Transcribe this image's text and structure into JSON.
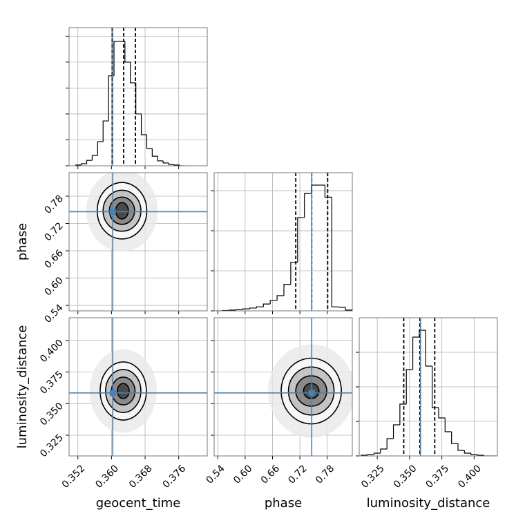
{
  "chart_data": [
    {
      "type": "histogram",
      "color": "#000000",
      "truth_color": "#4682b4",
      "grid": true,
      "bins": [
        0.3515,
        0.3528,
        0.3541,
        0.3554,
        0.3567,
        0.358,
        0.3593,
        0.3606,
        0.3619,
        0.3632,
        0.3645,
        0.3658,
        0.3671,
        0.3684,
        0.3697,
        0.371,
        0.3723,
        0.3736,
        0.3749,
        0.3762,
        0.3775
      ],
      "counts": [
        3,
        8,
        21,
        40,
        93,
        173,
        347,
        480,
        480,
        400,
        320,
        200,
        120,
        67,
        37,
        19,
        11,
        5,
        3,
        0
      ],
      "quantiles": [
        0.3602,
        0.3629,
        0.3657
      ],
      "truth": 0.3603,
      "xlim": [
        0.3499,
        0.3828
      ],
      "xticks": [
        0.352,
        0.36,
        0.368,
        0.376
      ],
      "ylim": [
        0,
        533
      ],
      "yticks": [
        0,
        100,
        200,
        300,
        400,
        500
      ]
    },
    {
      "type": "density",
      "truth_color": "#4682b4",
      "grid": true,
      "center": [
        0.3625,
        0.748
      ],
      "x_radius": [
        0.0085,
        0.0059,
        0.0045,
        0.003,
        0.0015
      ],
      "y_radius": [
        0.09,
        0.062,
        0.045,
        0.03,
        0.018
      ],
      "truth": [
        0.3603,
        0.746
      ],
      "ylabel": "phase",
      "xlim": [
        0.3499,
        0.3828
      ],
      "xticks": [
        0.352,
        0.36,
        0.368,
        0.376
      ],
      "ylim": [
        0.528,
        0.8316
      ],
      "yticks": [
        0.54,
        {
          "value": 0.6,
          "label": "0.60"
        },
        0.66,
        0.72,
        0.78
      ]
    },
    {
      "type": "histogram",
      "color": "#000000",
      "truth_color": "#4682b4",
      "grid": true,
      "bins": [
        0.535,
        0.55,
        0.565,
        0.58,
        0.595,
        0.61,
        0.625,
        0.64,
        0.655,
        0.67,
        0.685,
        0.7,
        0.715,
        0.73,
        0.745,
        0.76,
        0.775,
        0.79,
        0.805,
        0.82,
        0.835
      ],
      "counts": [
        0,
        1,
        2,
        3,
        5,
        7,
        10,
        17,
        26,
        38,
        66,
        121,
        233,
        293,
        314,
        314,
        284,
        10,
        9,
        2
      ],
      "quantiles": [
        0.711,
        0.746,
        0.781
      ],
      "truth": 0.746,
      "xlim": [
        0.532,
        0.835
      ],
      "xticks": [
        0.54,
        0.6,
        0.66,
        0.72,
        0.78
      ],
      "ylim": [
        0,
        345
      ],
      "yticks": [
        0,
        100,
        200,
        300
      ]
    },
    {
      "type": "density",
      "truth_color": "#4682b4",
      "grid": true,
      "center": [
        0.3628,
        0.36
      ],
      "x_radius": [
        0.008,
        0.0055,
        0.0042,
        0.0028,
        0.0014
      ],
      "y_radius": [
        0.033,
        0.023,
        0.017,
        0.011,
        0.006
      ],
      "truth": [
        0.3603,
        0.3585
      ],
      "xlabel": "geocent_time",
      "ylabel": "luminosity_distance",
      "xlim": [
        0.3499,
        0.3828
      ],
      "xticks": [
        0.352,
        {
          "value": 0.36,
          "label": "0.360"
        },
        0.368,
        0.376
      ],
      "ylim": [
        0.3086,
        0.418
      ],
      "yticks": [
        0.325,
        {
          "value": 0.35,
          "label": "0.350"
        },
        0.375,
        {
          "value": 0.4,
          "label": "0.400"
        }
      ]
    },
    {
      "type": "density",
      "truth_color": "#4682b4",
      "grid": true,
      "center": [
        0.745,
        0.36
      ],
      "x_radius": [
        0.095,
        0.066,
        0.05,
        0.034,
        0.017
      ],
      "y_radius": [
        0.037,
        0.026,
        0.019,
        0.012,
        0.006
      ],
      "truth": [
        0.746,
        0.3585
      ],
      "xlabel": "phase",
      "xlim": [
        0.532,
        0.835
      ],
      "xticks": [
        0.54,
        {
          "value": 0.6,
          "label": "0.60"
        },
        0.66,
        0.72,
        0.78
      ],
      "ylim": [
        0.3086,
        0.418
      ],
      "yticks": [
        0.325,
        0.35,
        0.375,
        0.4
      ]
    },
    {
      "type": "histogram",
      "color": "#000000",
      "truth_color": "#4682b4",
      "grid": true,
      "bins": [
        0.3125,
        0.3175,
        0.3225,
        0.3275,
        0.3325,
        0.3375,
        0.3425,
        0.3475,
        0.3525,
        0.3575,
        0.3625,
        0.3675,
        0.3725,
        0.3775,
        0.3825,
        0.3875,
        0.3925,
        0.3975,
        0.4025,
        0.4075,
        0.4125,
        0.4175
      ],
      "counts": [
        2,
        4,
        8,
        20,
        50,
        90,
        150,
        250,
        344,
        364,
        260,
        140,
        110,
        70,
        36,
        16,
        8,
        4,
        2,
        0,
        0
      ],
      "quantiles": [
        0.3455,
        0.358,
        0.3695
      ],
      "truth": 0.3585,
      "xlabel": "luminosity_distance",
      "xlim": [
        0.311,
        0.418
      ],
      "xticks": [
        0.325,
        {
          "value": 0.35,
          "label": "0.350"
        },
        0.375,
        {
          "value": 0.4,
          "label": "0.400"
        }
      ],
      "ylim": [
        0,
        400
      ],
      "yticks": [
        0,
        100,
        200,
        300
      ]
    }
  ]
}
